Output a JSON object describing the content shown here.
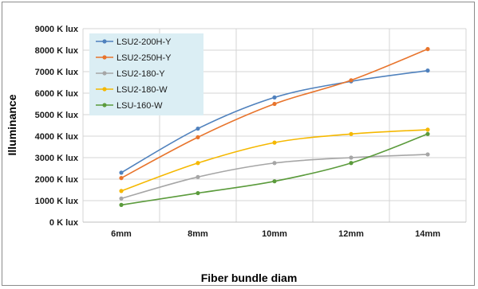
{
  "chart_data": {
    "type": "line",
    "title": "",
    "xlabel": "Fiber bundle diam",
    "ylabel": "Illuminance",
    "categories": [
      "6mm",
      "8mm",
      "10mm",
      "12mm",
      "14mm"
    ],
    "ylim": [
      0,
      9000
    ],
    "yticks": [
      0,
      1000,
      2000,
      3000,
      4000,
      5000,
      6000,
      7000,
      8000,
      9000
    ],
    "ytick_labels": [
      "0 K lux",
      "1000 K lux",
      "2000 K lux",
      "3000 K lux",
      "4000 K lux",
      "5000 K lux",
      "6000 K lux",
      "7000 K lux",
      "8000 K lux",
      "9000 K lux"
    ],
    "grid": true,
    "legend_position": "top-left",
    "series": [
      {
        "name": "LSU2-200H-Y",
        "color": "#4f81bd",
        "values": [
          2300,
          4350,
          5800,
          6550,
          7050
        ]
      },
      {
        "name": "LSU2-250H-Y",
        "color": "#e8742c",
        "values": [
          2050,
          3950,
          5500,
          6600,
          8050
        ]
      },
      {
        "name": "LSU2-180-Y",
        "color": "#a6a6a6",
        "values": [
          1100,
          2100,
          2750,
          3000,
          3150
        ]
      },
      {
        "name": "LSU2-180-W",
        "color": "#f5b800",
        "values": [
          1450,
          2750,
          3700,
          4100,
          4300
        ]
      },
      {
        "name": "LSU-160-W",
        "color": "#5b9b3c",
        "values": [
          800,
          1350,
          1900,
          2750,
          4100
        ]
      }
    ]
  }
}
